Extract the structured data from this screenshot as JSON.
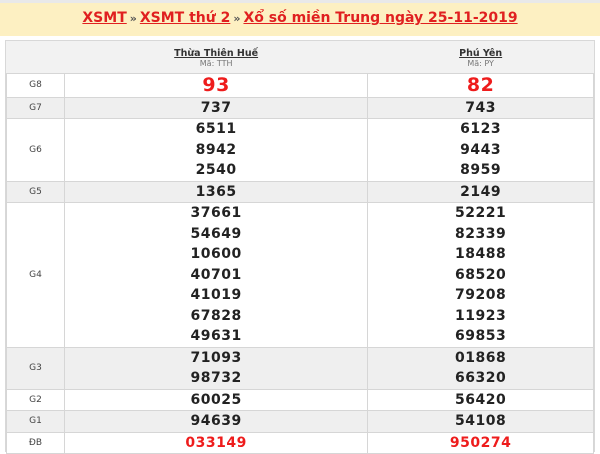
{
  "breadcrumb": {
    "items": [
      "XSMT",
      "XSMT thứ 2",
      "Xổ số miền Trung ngày 25-11-2019"
    ],
    "separator": "»"
  },
  "provinces": [
    {
      "name": "Thừa Thiên Huế",
      "code": "Mã: TTH"
    },
    {
      "name": "Phú Yên",
      "code": "Mã: PY"
    }
  ],
  "prizes": [
    {
      "label": "G8",
      "values": [
        [
          "93"
        ],
        [
          "82"
        ]
      ]
    },
    {
      "label": "G7",
      "values": [
        [
          "737"
        ],
        [
          "743"
        ]
      ]
    },
    {
      "label": "G6",
      "values": [
        [
          "6511",
          "8942",
          "2540"
        ],
        [
          "6123",
          "9443",
          "8959"
        ]
      ]
    },
    {
      "label": "G5",
      "values": [
        [
          "1365"
        ],
        [
          "2149"
        ]
      ]
    },
    {
      "label": "G4",
      "values": [
        [
          "37661",
          "54649",
          "10600",
          "40701",
          "41019",
          "67828",
          "49631"
        ],
        [
          "52221",
          "82339",
          "18488",
          "68520",
          "79208",
          "11923",
          "69853"
        ]
      ]
    },
    {
      "label": "G3",
      "values": [
        [
          "71093",
          "98732"
        ],
        [
          "01868",
          "66320"
        ]
      ]
    },
    {
      "label": "G2",
      "values": [
        [
          "60025"
        ],
        [
          "56420"
        ]
      ]
    },
    {
      "label": "G1",
      "values": [
        [
          "94639"
        ],
        [
          "54108"
        ]
      ]
    },
    {
      "label": "ĐB",
      "values": [
        [
          "033149"
        ],
        [
          "950274"
        ]
      ]
    }
  ],
  "colors": {
    "accent": "#ee1c1c",
    "banner_bg": "#fdf0c2"
  }
}
